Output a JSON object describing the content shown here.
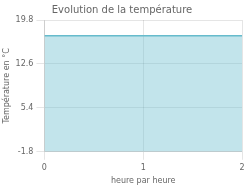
{
  "chart_data": {
    "type": "area",
    "title": "Evolution de la température",
    "xlabel": "heure par heure",
    "ylabel": "Température en °C",
    "x": [
      0,
      2
    ],
    "values": [
      17.2,
      17.2
    ],
    "color": "#66bbcc",
    "xlim": [
      0,
      2
    ],
    "ylim": [
      -1.8,
      19.8
    ],
    "xticks": [
      0,
      1,
      2
    ],
    "yticks": [
      -1.8,
      5.4,
      12.6,
      19.8
    ],
    "grid": true
  }
}
